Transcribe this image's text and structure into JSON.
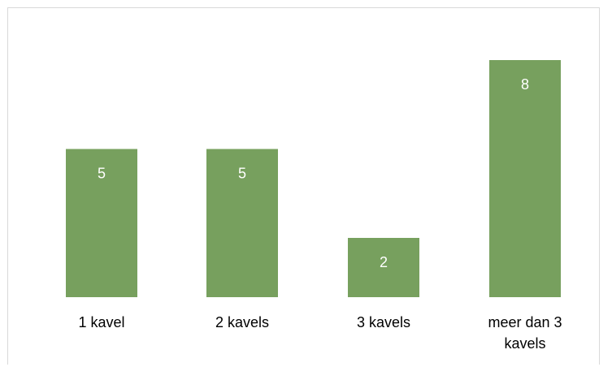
{
  "chart_data": {
    "type": "bar",
    "categories": [
      [
        "1 kavel"
      ],
      [
        "2 kavels"
      ],
      [
        "3 kavels"
      ],
      [
        "meer dan 3",
        "kavels"
      ]
    ],
    "values": [
      5,
      5,
      2,
      8
    ],
    "data_labels": [
      "5",
      "5",
      "2",
      "8"
    ],
    "title": "",
    "xlabel": "",
    "ylabel": "",
    "ylim": [
      0,
      8
    ],
    "grid": false,
    "bar_color": "#77a05e"
  }
}
